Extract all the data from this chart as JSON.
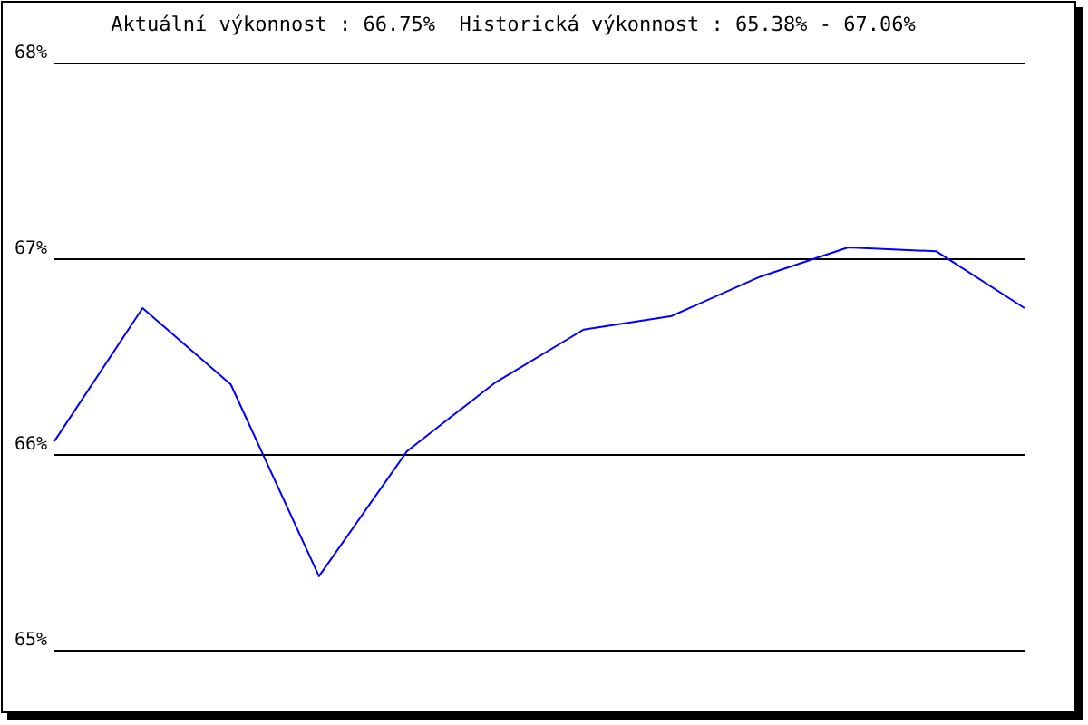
{
  "chart_data": {
    "type": "line",
    "title": "Aktuální výkonnost : 66.75%  Historická výkonnost : 65.38% - 67.06%",
    "categories": [
      null,
      null,
      null,
      null,
      null,
      null,
      null,
      null,
      null,
      null,
      null,
      null
    ],
    "series": [
      {
        "color": "#0000ff",
        "values": [
          66.07,
          66.75,
          66.36,
          65.38,
          66.02,
          66.37,
          66.64,
          66.71,
          66.91,
          67.06,
          67.04,
          66.75
        ]
      }
    ],
    "ylim": [
      65,
      68
    ],
    "yticks": [
      {
        "value": 65,
        "label": "65%"
      },
      {
        "value": 66,
        "label": "66%"
      },
      {
        "value": 67,
        "label": "67%"
      },
      {
        "value": 68,
        "label": "68%"
      }
    ],
    "grid": "y",
    "marker": "none",
    "line_style": "solid"
  }
}
